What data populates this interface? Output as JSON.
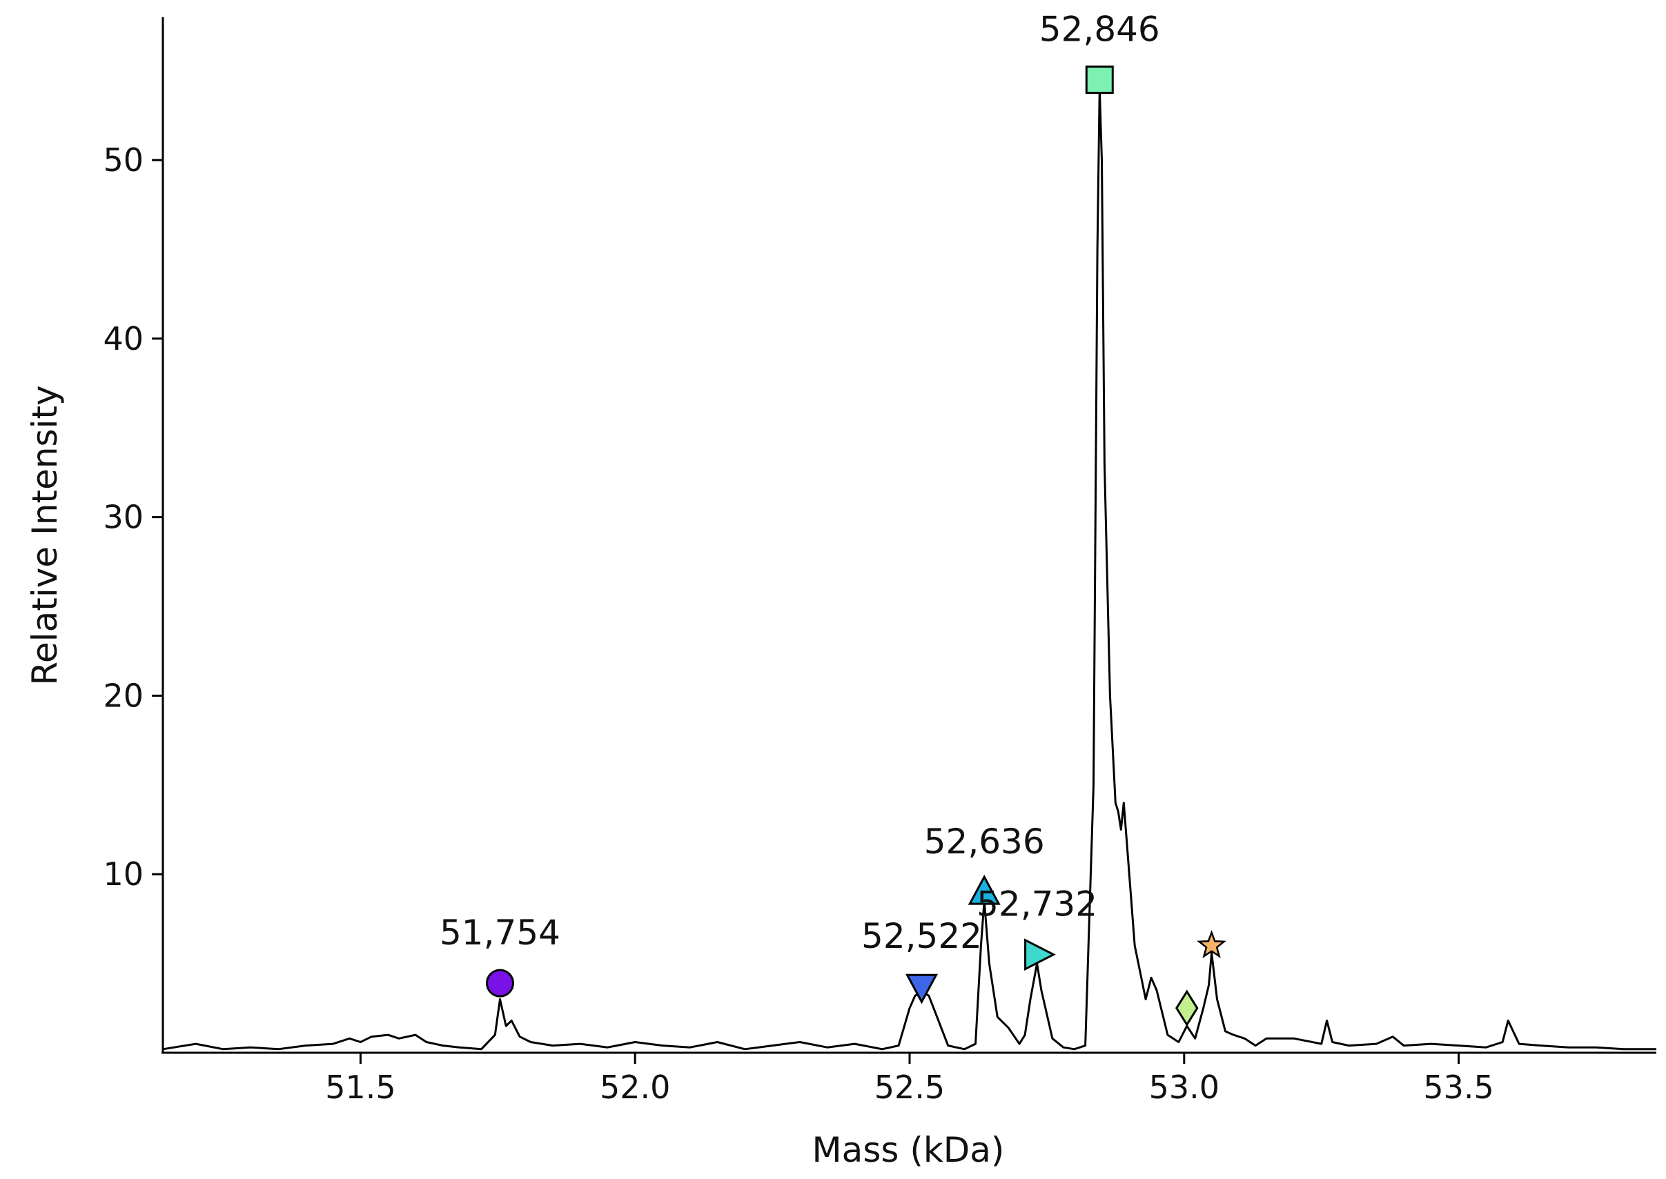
{
  "chart_data": {
    "type": "line",
    "title": "",
    "xlabel": "Mass (kDa)",
    "ylabel": "Relative Intensity",
    "xlim": [
      51.14,
      53.86
    ],
    "ylim": [
      0,
      58
    ],
    "x_ticks": [
      51.5,
      52.0,
      52.5,
      53.0,
      53.5
    ],
    "x_tick_labels": [
      "51.5",
      "52.0",
      "52.5",
      "53.0",
      "53.5"
    ],
    "y_ticks": [
      10,
      20,
      30,
      40,
      50
    ],
    "y_tick_labels": [
      "10",
      "20",
      "30",
      "40",
      "50"
    ],
    "grid": false,
    "line_color": "#000000",
    "series": [
      {
        "x": [
          51.14,
          51.2,
          51.25,
          51.3,
          51.35,
          51.4,
          51.45,
          51.48,
          51.5,
          51.52,
          51.55,
          51.57,
          51.6,
          51.62,
          51.65,
          51.68,
          51.72,
          51.745,
          51.754,
          51.765,
          51.775,
          51.79,
          51.81,
          51.85,
          51.9,
          51.95,
          52.0,
          52.05,
          52.1,
          52.15,
          52.2,
          52.25,
          52.3,
          52.35,
          52.4,
          52.45,
          52.48,
          52.5,
          52.51,
          52.522,
          52.535,
          52.55,
          52.57,
          52.6,
          52.62,
          52.63,
          52.636,
          52.645,
          52.66,
          52.68,
          52.7,
          52.71,
          52.72,
          52.732,
          52.74,
          52.76,
          52.78,
          52.8,
          52.82,
          52.835,
          52.842,
          52.846,
          52.85,
          52.855,
          52.865,
          52.875,
          52.88,
          52.885,
          52.89,
          52.895,
          52.91,
          52.93,
          52.94,
          52.95,
          52.97,
          52.99,
          53.005,
          53.02,
          53.035,
          53.045,
          53.05,
          53.06,
          53.075,
          53.09,
          53.11,
          53.13,
          53.15,
          53.2,
          53.25,
          53.26,
          53.27,
          53.3,
          53.35,
          53.38,
          53.4,
          53.45,
          53.5,
          53.55,
          53.58,
          53.59,
          53.61,
          53.65,
          53.7,
          53.75,
          53.8,
          53.86
        ],
        "y": [
          0.2,
          0.5,
          0.2,
          0.3,
          0.2,
          0.4,
          0.5,
          0.8,
          0.6,
          0.9,
          1.0,
          0.8,
          1.0,
          0.6,
          0.4,
          0.3,
          0.2,
          1.0,
          3.0,
          1.5,
          1.8,
          0.9,
          0.6,
          0.4,
          0.5,
          0.3,
          0.6,
          0.4,
          0.3,
          0.6,
          0.2,
          0.4,
          0.6,
          0.3,
          0.5,
          0.2,
          0.4,
          2.5,
          3.2,
          3.4,
          3.2,
          2.0,
          0.4,
          0.2,
          0.5,
          6.0,
          8.5,
          5.0,
          2.0,
          1.4,
          0.5,
          1.0,
          3.0,
          5.0,
          3.5,
          0.8,
          0.3,
          0.2,
          0.4,
          15.0,
          45.0,
          54.0,
          50.0,
          33.0,
          20.0,
          14.0,
          13.5,
          12.5,
          14.0,
          12.0,
          6.0,
          3.0,
          4.2,
          3.5,
          1.0,
          0.6,
          1.5,
          0.8,
          2.5,
          3.8,
          5.6,
          3.0,
          1.2,
          1.0,
          0.8,
          0.4,
          0.8,
          0.8,
          0.5,
          1.8,
          0.6,
          0.4,
          0.5,
          0.9,
          0.4,
          0.5,
          0.4,
          0.3,
          0.6,
          1.8,
          0.5,
          0.4,
          0.3,
          0.3,
          0.2,
          0.2
        ]
      }
    ],
    "peaks": [
      {
        "x": 51.754,
        "y": 3.9,
        "label": "51,754",
        "marker": "circle",
        "color": "#7a12e8"
      },
      {
        "x": 52.522,
        "y": 3.7,
        "label": "52,522",
        "marker": "triangle-down",
        "color": "#3d67e8"
      },
      {
        "x": 52.636,
        "y": 9.0,
        "label": "52,636",
        "marker": "triangle-up",
        "color": "#1ab0e0"
      },
      {
        "x": 52.732,
        "y": 5.5,
        "label": "52,732",
        "marker": "triangle-right",
        "color": "#3fd8cf"
      },
      {
        "x": 52.846,
        "y": 54.5,
        "label": "52,846",
        "marker": "square",
        "color": "#7cf1b2"
      },
      {
        "x": 53.005,
        "y": 2.5,
        "label": "",
        "marker": "diamond",
        "color": "#c3ef8e"
      },
      {
        "x": 53.05,
        "y": 6.0,
        "label": "",
        "marker": "star",
        "color": "#f7b467"
      }
    ]
  }
}
